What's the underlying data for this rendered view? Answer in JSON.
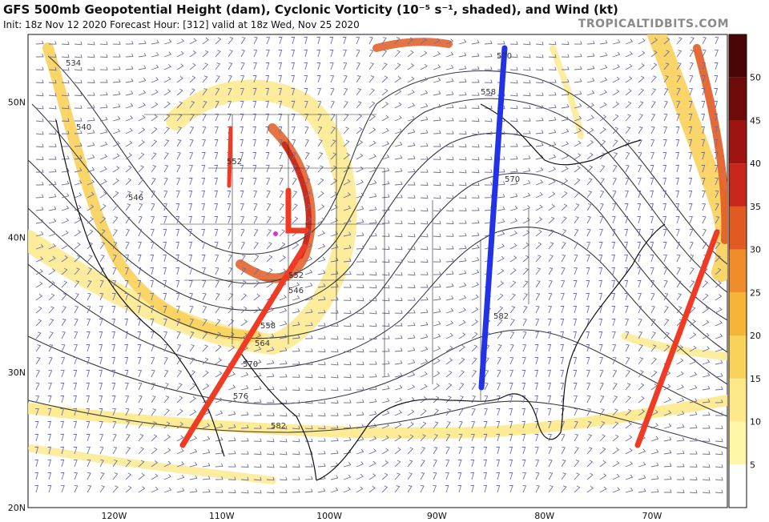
{
  "header": {
    "title": "GFS 500mb Geopotential Height (dam), Cyclonic Vorticity (10⁻⁵ s⁻¹, shaded), and Wind (kt)",
    "subtitle": "Init: 18z Nov 12 2020   Forecast Hour: [312]   valid at 18z Wed, Nov 25 2020",
    "brand": "TROPICALTIDBITS.COM"
  },
  "map": {
    "lon_range": [
      -128,
      -63
    ],
    "lat_range": [
      20,
      55
    ],
    "lon_ticks": [
      "120W",
      "110W",
      "100W",
      "90W",
      "80W",
      "70W"
    ],
    "lat_ticks": [
      "20N",
      "30N",
      "40N",
      "50N"
    ],
    "contour_labels": [
      "534",
      "540",
      "546",
      "552",
      "558",
      "564",
      "570",
      "576",
      "582"
    ],
    "colors": {
      "vorticity_low": "#fde98a",
      "vorticity_mid": "#f6b537",
      "vorticity_high": "#c8261a",
      "trough_axis_red": "#f03a24",
      "ridge_axis_blue": "#2232e6",
      "contour": "#3a3a3a",
      "wind_barb": "#6a6fa8",
      "coast": "#111111"
    }
  },
  "colorbar": {
    "ticks": [
      "5",
      "10",
      "15",
      "20",
      "25",
      "30",
      "35",
      "40",
      "45",
      "50"
    ],
    "colors": [
      "#ffffff",
      "#fff6a8",
      "#fde98a",
      "#f9d25a",
      "#f6b537",
      "#f08d2a",
      "#e15a22",
      "#c8261a",
      "#9e1410",
      "#6e0a08",
      "#4a0505"
    ]
  }
}
